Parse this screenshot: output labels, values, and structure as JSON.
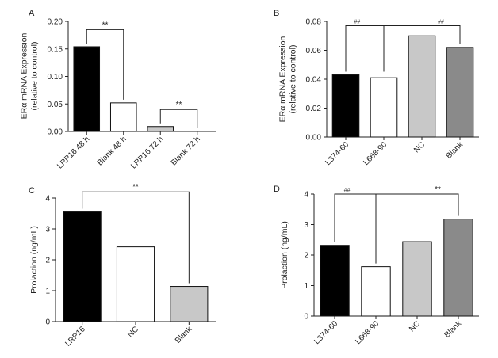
{
  "chart_data": [
    {
      "panel": "A",
      "type": "bar",
      "ylabel": "ERα mRNA Expression (relative to control)",
      "ylabel_lines": [
        "ERα mRNA Expression",
        "(relative to control)"
      ],
      "ylim": [
        0,
        0.2
      ],
      "yticks": [
        0,
        0.05,
        0.1,
        0.15,
        0.2
      ],
      "ytick_labels": [
        "0.00",
        "0.05",
        "0.10",
        "0.15",
        "0.20"
      ],
      "categories": [
        "LRP16 48 h",
        "Blank 48 h",
        "LRP16 72 h",
        "Blank 72 h"
      ],
      "values": [
        0.154,
        0.052,
        0.009,
        0.0
      ],
      "bar_colors": [
        "#000000",
        "#ffffff",
        "#c8c8c8",
        "#ffffff"
      ],
      "significance": [
        {
          "from": 0,
          "to": 1,
          "label": "**",
          "level": 0.185
        },
        {
          "from": 2,
          "to": 3,
          "label": "**",
          "level": 0.04
        }
      ]
    },
    {
      "panel": "B",
      "type": "bar",
      "ylabel": "ERα mRNA Expression (relative to control)",
      "ylabel_lines": [
        "ERα mRNA Expression",
        "(relative to control)"
      ],
      "ylim": [
        0,
        0.08
      ],
      "yticks": [
        0,
        0.02,
        0.04,
        0.06,
        0.08
      ],
      "ytick_labels": [
        "0.00",
        "0.02",
        "0.04",
        "0.06",
        "0.08"
      ],
      "categories": [
        "L374-60",
        "L668-90",
        "NC",
        "Blank"
      ],
      "values": [
        0.043,
        0.041,
        0.07,
        0.062
      ],
      "bar_colors": [
        "#000000",
        "#ffffff",
        "#c8c8c8",
        "#8a8a8a"
      ],
      "significance": [
        {
          "from": 0,
          "to": 3,
          "label": "##",
          "level": 0.077,
          "label_x": 0.3
        },
        {
          "from": 0,
          "to": 3,
          "label": "##",
          "level": 0.077,
          "label_x": 2.5
        }
      ],
      "extra_line": {
        "at": 1,
        "from_level": 0.043,
        "to_level": 0.077
      }
    },
    {
      "panel": "C",
      "type": "bar",
      "ylabel": "Prolaction (ng/mL)",
      "ylabel_lines": [
        "Prolaction (ng/mL)"
      ],
      "ylim": [
        0,
        4
      ],
      "yticks": [
        0,
        1,
        2,
        3,
        4
      ],
      "ytick_labels": [
        "0",
        "1",
        "2",
        "3",
        "4"
      ],
      "categories": [
        "LRP16",
        "NC",
        "Blank"
      ],
      "values": [
        3.55,
        2.42,
        1.14
      ],
      "bar_colors": [
        "#000000",
        "#ffffff",
        "#c8c8c8"
      ],
      "significance": [
        {
          "from": 0,
          "to": 2,
          "label": "**",
          "level": 4.2
        }
      ]
    },
    {
      "panel": "D",
      "type": "bar",
      "ylabel": "Prolaction (ng/mL)",
      "ylabel_lines": [
        "Prolaction (ng/mL)"
      ],
      "ylim": [
        0,
        4
      ],
      "yticks": [
        0,
        1,
        2,
        3,
        4
      ],
      "ytick_labels": [
        "0",
        "1",
        "2",
        "3",
        "4"
      ],
      "categories": [
        "L374-60",
        "L668-90",
        "NC",
        "Blank"
      ],
      "values": [
        2.32,
        1.62,
        2.44,
        3.18
      ],
      "bar_colors": [
        "#000000",
        "#ffffff",
        "#c8c8c8",
        "#8a8a8a"
      ],
      "significance": [
        {
          "from": 0,
          "to": 3,
          "label": "##",
          "level": 4.0,
          "label_x": 0.3
        },
        {
          "from": 0,
          "to": 3,
          "label": "**",
          "level": 4.0,
          "label_x": 2.5
        }
      ],
      "extra_line": {
        "at": 1,
        "from_level": 1.62,
        "to_level": 4.0
      }
    }
  ]
}
